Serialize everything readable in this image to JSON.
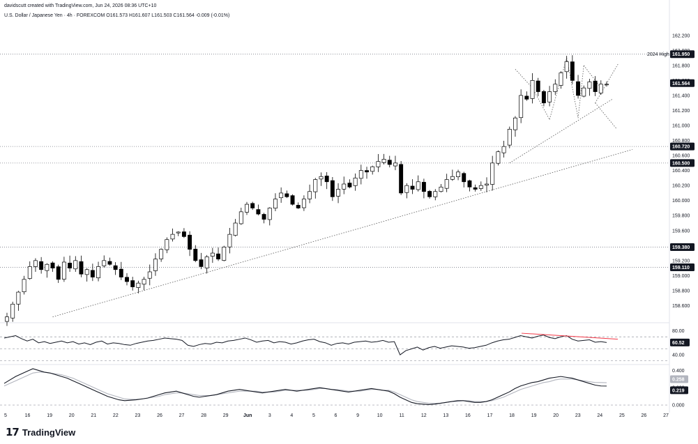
{
  "header": {
    "created_by": "davidscutt created with TradingView.com, Jun 24, 2026 08:36 UTC+10",
    "symbol_line": "U.S. Dollar / Japanese Yen · 4h · FOREXCOM  O161.573  H161.607  L161.503  C161.564  -0.009 (-0.01%)"
  },
  "brand": {
    "mark": "17",
    "name": "TradingView"
  },
  "colors": {
    "up": "#ffffff",
    "down": "#000000",
    "outline": "#000000",
    "rsi_divergence": "#f23645",
    "label_bg": "#131722",
    "grid": "#f0f3fa"
  },
  "chart_data": [
    {
      "type": "candlestick",
      "title": "U.S. Dollar / Japanese Yen · 4h · FOREXCOM",
      "ohlc_last": {
        "open": 161.573,
        "high": 161.607,
        "low": 161.503,
        "close": 161.564,
        "change": "-0.009 (-0.01%)"
      },
      "x_ticks": [
        "5",
        "16",
        "19",
        "20",
        "21",
        "22",
        "23",
        "26",
        "27",
        "28",
        "29",
        "Jun",
        "3",
        "4",
        "5",
        "6",
        "9",
        "10",
        "11",
        "12",
        "13",
        "16",
        "17",
        "18",
        "19",
        "20",
        "23",
        "24",
        "25",
        "26",
        "27"
      ],
      "y_ticks": [
        "162.200",
        "162.000",
        "161.800",
        "161.600",
        "161.400",
        "161.200",
        "161.000",
        "160.800",
        "160.600",
        "160.400",
        "160.200",
        "160.000",
        "159.800",
        "159.600",
        "159.400",
        "159.200",
        "159.000",
        "158.800",
        "158.600"
      ],
      "ylim": [
        158.4,
        162.3
      ],
      "close_path": [
        158.45,
        158.62,
        158.78,
        158.95,
        159.12,
        159.2,
        159.08,
        159.15,
        159.1,
        158.95,
        159.18,
        159.1,
        159.2,
        159.02,
        159.08,
        158.98,
        159.12,
        159.2,
        159.15,
        159.08,
        158.98,
        158.92,
        158.85,
        158.9,
        158.95,
        159.05,
        159.22,
        159.35,
        159.48,
        159.55,
        159.58,
        159.52,
        159.35,
        159.2,
        159.12,
        159.25,
        159.3,
        159.22,
        159.38,
        159.55,
        159.7,
        159.85,
        159.95,
        159.9,
        159.82,
        159.75,
        159.9,
        160.02,
        160.1,
        160.05,
        159.95,
        159.9,
        160.02,
        160.12,
        160.28,
        160.32,
        160.25,
        160.05,
        160.15,
        160.22,
        160.18,
        160.3,
        160.4,
        160.38,
        160.45,
        160.52,
        160.55,
        160.48,
        160.5,
        160.1,
        160.2,
        160.15,
        160.25,
        160.12,
        160.05,
        160.12,
        160.18,
        160.28,
        160.32,
        160.38,
        160.25,
        160.18,
        160.15,
        160.2,
        160.22,
        160.5,
        160.65,
        160.72,
        160.95,
        161.1,
        161.4,
        161.35,
        161.6,
        161.45,
        161.3,
        161.45,
        161.55,
        161.7,
        161.85,
        161.6,
        161.4,
        161.5,
        161.58,
        161.45,
        161.55,
        161.55
      ],
      "horizontal_levels": [
        {
          "label": "161.950",
          "price": 161.95,
          "note": "2024 High"
        },
        {
          "label": "161.564",
          "price": 161.564,
          "note": ""
        },
        {
          "label": "160.720",
          "price": 160.72,
          "note": ""
        },
        {
          "label": "160.500",
          "price": 160.5,
          "note": ""
        },
        {
          "label": "159.380",
          "price": 159.38,
          "note": ""
        },
        {
          "label": "159.110",
          "price": 159.11,
          "note": ""
        }
      ]
    },
    {
      "type": "line",
      "title": "RSI",
      "y_ticks": [
        "80.00",
        "60.00",
        "40.00"
      ],
      "ylim": [
        25,
        90
      ],
      "current_label": "60.52",
      "bands": [
        70,
        50,
        30
      ],
      "values": [
        68,
        70,
        72,
        67,
        63,
        66,
        60,
        62,
        59,
        61,
        63,
        60,
        62,
        58,
        60,
        57,
        61,
        63,
        58,
        60,
        59,
        57,
        56,
        59,
        61,
        63,
        64,
        66,
        68,
        67,
        66,
        64,
        56,
        54,
        57,
        59,
        58,
        61,
        60,
        63,
        64,
        66,
        68,
        65,
        61,
        63,
        64,
        60,
        62,
        61,
        58,
        60,
        63,
        65,
        66,
        62,
        60,
        56,
        59,
        60,
        58,
        61,
        62,
        63,
        61,
        62,
        64,
        61,
        62,
        40,
        47,
        50,
        53,
        48,
        52,
        54,
        51,
        53,
        55,
        54,
        53,
        51,
        52,
        54,
        56,
        60,
        63,
        65,
        66,
        69,
        72,
        70,
        68,
        71,
        73,
        69,
        67,
        70,
        72,
        66,
        63,
        64,
        65,
        61,
        62,
        60.5
      ]
    },
    {
      "type": "line",
      "title": "Oscillator",
      "y_ticks": [
        "0.400",
        "0.200",
        "0.000"
      ],
      "ylim": [
        -0.04,
        0.46
      ],
      "current_labels": [
        "0.258",
        "0.219"
      ],
      "series": [
        {
          "values": [
            0.25,
            0.29,
            0.33,
            0.36,
            0.39,
            0.42,
            0.4,
            0.38,
            0.37,
            0.35,
            0.33,
            0.31,
            0.28,
            0.25,
            0.22,
            0.19,
            0.16,
            0.13,
            0.1,
            0.08,
            0.06,
            0.05,
            0.055,
            0.06,
            0.07,
            0.08,
            0.1,
            0.12,
            0.14,
            0.15,
            0.16,
            0.14,
            0.12,
            0.1,
            0.09,
            0.1,
            0.11,
            0.12,
            0.14,
            0.16,
            0.17,
            0.18,
            0.17,
            0.16,
            0.15,
            0.14,
            0.15,
            0.16,
            0.17,
            0.18,
            0.17,
            0.16,
            0.17,
            0.18,
            0.19,
            0.2,
            0.19,
            0.18,
            0.17,
            0.16,
            0.15,
            0.16,
            0.17,
            0.18,
            0.19,
            0.18,
            0.17,
            0.16,
            0.13,
            0.09,
            0.06,
            0.03,
            0.015,
            0.01,
            0.005,
            0.01,
            0.02,
            0.03,
            0.04,
            0.05,
            0.05,
            0.04,
            0.03,
            0.03,
            0.04,
            0.06,
            0.09,
            0.12,
            0.15,
            0.19,
            0.22,
            0.24,
            0.26,
            0.27,
            0.29,
            0.31,
            0.32,
            0.33,
            0.32,
            0.31,
            0.29,
            0.27,
            0.25,
            0.23,
            0.22,
            0.219
          ]
        },
        {
          "values": [
            0.22,
            0.25,
            0.28,
            0.31,
            0.34,
            0.37,
            0.38,
            0.38,
            0.37,
            0.36,
            0.35,
            0.33,
            0.31,
            0.28,
            0.25,
            0.22,
            0.19,
            0.16,
            0.13,
            0.11,
            0.09,
            0.07,
            0.065,
            0.065,
            0.07,
            0.08,
            0.09,
            0.1,
            0.12,
            0.13,
            0.14,
            0.14,
            0.13,
            0.12,
            0.11,
            0.11,
            0.11,
            0.12,
            0.13,
            0.14,
            0.15,
            0.16,
            0.16,
            0.16,
            0.16,
            0.15,
            0.15,
            0.15,
            0.16,
            0.17,
            0.17,
            0.17,
            0.17,
            0.17,
            0.18,
            0.19,
            0.19,
            0.18,
            0.18,
            0.17,
            0.16,
            0.16,
            0.16,
            0.17,
            0.18,
            0.18,
            0.17,
            0.17,
            0.15,
            0.12,
            0.09,
            0.06,
            0.04,
            0.03,
            0.02,
            0.02,
            0.02,
            0.03,
            0.04,
            0.04,
            0.05,
            0.05,
            0.04,
            0.04,
            0.04,
            0.05,
            0.07,
            0.09,
            0.12,
            0.15,
            0.18,
            0.2,
            0.22,
            0.24,
            0.26,
            0.27,
            0.29,
            0.3,
            0.3,
            0.3,
            0.29,
            0.28,
            0.27,
            0.26,
            0.26,
            0.258
          ]
        }
      ]
    }
  ]
}
